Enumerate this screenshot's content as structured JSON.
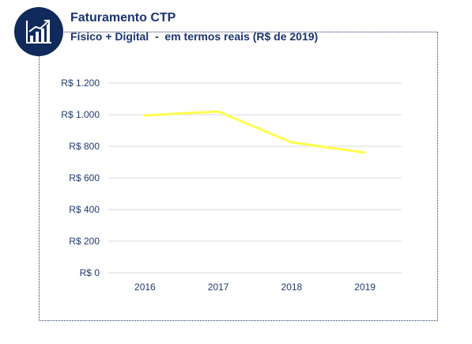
{
  "header": {
    "title": "Faturamento CTP",
    "subtitle": "Físico + Digital  -  em termos reais (R$ de 2019)",
    "icon": "growth-chart-icon",
    "badge_color": "#112a5c",
    "text_color": "#1b3370"
  },
  "chart_data": {
    "type": "line",
    "x": [
      "2016",
      "2017",
      "2018",
      "2019"
    ],
    "series": [
      {
        "values": [
          995,
          1020,
          825,
          760
        ],
        "color": "#ffff4d"
      }
    ],
    "ylim": [
      0,
      1200
    ],
    "yticks": [
      0,
      200,
      400,
      600,
      800,
      1000,
      1200
    ],
    "ytick_labels": [
      "R$ 0",
      "R$ 200",
      "R$ 400",
      "R$ 600",
      "R$ 800",
      "R$ 1.000",
      "R$ 1.200"
    ],
    "grid": true,
    "legend": "none",
    "title": "",
    "xlabel": "",
    "ylabel": ""
  }
}
